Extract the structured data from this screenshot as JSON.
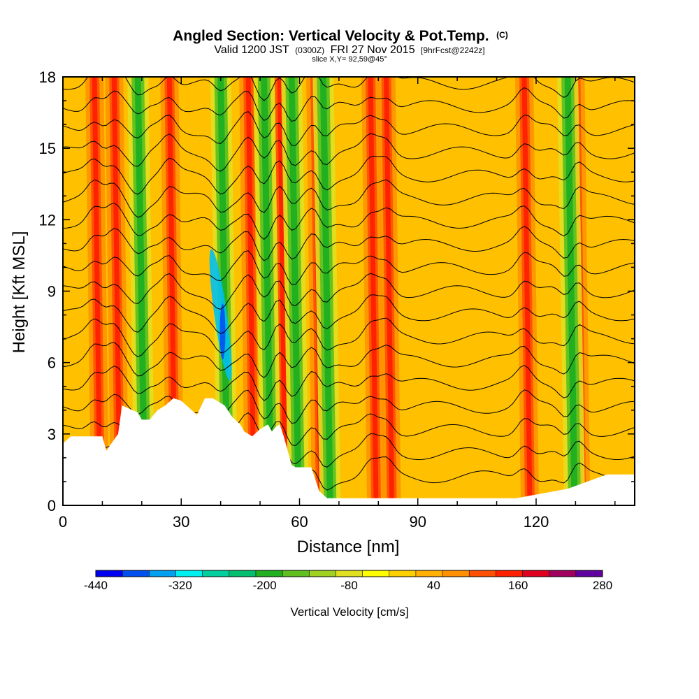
{
  "title": {
    "main": "Angled Section: Vertical Velocity & Pot.Temp.",
    "mark": "(C)",
    "valid_prefix": "Valid 1200 JST",
    "utc": "(0300Z)",
    "date": "FRI 27 Nov 2015",
    "fcst": "[9hrFcst@2242z]",
    "slice": "slice X,Y= 92,59@45°"
  },
  "chart_data": {
    "type": "heatmap",
    "xlabel": "Distance [nm]",
    "ylabel": "Height [Kft MSL]",
    "xlim": [
      0,
      145
    ],
    "ylim": [
      0,
      18
    ],
    "x_ticks": [
      "0",
      "30",
      "60",
      "90",
      "120"
    ],
    "y_ticks": [
      "0",
      "3",
      "6",
      "9",
      "12",
      "15",
      "18"
    ],
    "colorbar": {
      "label": "Vertical Velocity [cm/s]",
      "tick_labels": [
        "-440",
        "-320",
        "-200",
        "-80",
        "40",
        "160",
        "280"
      ],
      "levels": [
        -440,
        -400,
        -360,
        -320,
        -280,
        -240,
        -200,
        -160,
        -120,
        -80,
        -40,
        0,
        40,
        80,
        120,
        160,
        200,
        240,
        280
      ],
      "colors": [
        "#0000f0",
        "#0050f0",
        "#00a0f0",
        "#00f0f0",
        "#00d0a0",
        "#00c070",
        "#20b020",
        "#60c020",
        "#a0d020",
        "#e0e020",
        "#ffff00",
        "#ffd000",
        "#ffb000",
        "#ff9000",
        "#ff5000",
        "#ff2000",
        "#e00020",
        "#a00060",
        "#6000a0"
      ]
    },
    "updraft_bands_x_nm": [
      8,
      13,
      27,
      47,
      55,
      64,
      78,
      82,
      117,
      130
    ],
    "downdraft_bands_x_nm": [
      19,
      40,
      51,
      58,
      66,
      128
    ],
    "terrain_profile": {
      "x_nm": [
        0,
        2,
        10,
        11,
        14,
        15,
        19,
        20,
        22,
        24,
        26,
        28,
        30,
        32,
        34,
        36,
        38,
        41,
        43,
        45,
        46,
        48,
        50,
        52,
        53,
        54,
        55,
        56,
        58,
        59,
        63,
        65,
        67,
        70,
        115,
        128,
        138,
        145
      ],
      "height_kft": [
        2.6,
        2.9,
        2.9,
        2.3,
        3.0,
        4.2,
        3.9,
        3.6,
        3.6,
        4.0,
        4.2,
        4.5,
        4.4,
        4.1,
        3.8,
        4.5,
        4.5,
        4.2,
        3.7,
        3.4,
        3.1,
        2.9,
        3.2,
        3.4,
        3.1,
        3.3,
        3.4,
        2.9,
        1.7,
        1.6,
        1.6,
        0.6,
        0.3,
        0.3,
        0.3,
        0.7,
        1.3,
        1.3
      ]
    },
    "theta_contours": {
      "levels_c": [
        12,
        14,
        16,
        18,
        20,
        22,
        24,
        26,
        28,
        30,
        32,
        34,
        36,
        38,
        40,
        42,
        44,
        46
      ],
      "label_samples": [
        "1",
        "5",
        "12",
        "13",
        "16",
        "17",
        "18"
      ]
    },
    "grid": false,
    "legend": "bottom"
  }
}
